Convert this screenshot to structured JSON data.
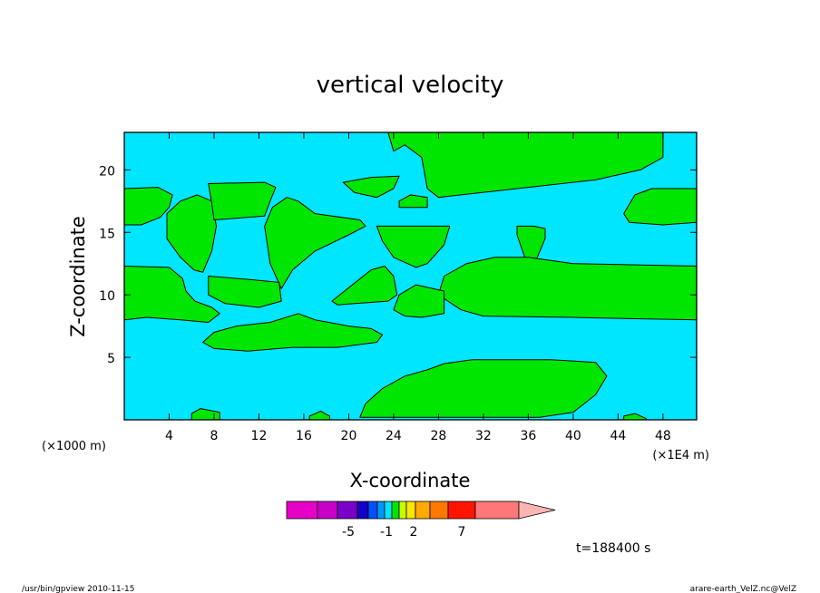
{
  "chart_data": {
    "type": "contour",
    "title": "vertical velocity",
    "xlabel": "X-coordinate",
    "ylabel": "Z-coordinate",
    "x_unit_left": "(×1000 m)",
    "x_unit_right": "(×1E4 m)",
    "xlim": [
      0,
      51
    ],
    "ylim": [
      0,
      23
    ],
    "x_ticks": [
      4,
      8,
      12,
      16,
      20,
      24,
      28,
      32,
      36,
      40,
      44,
      48
    ],
    "y_ticks": [
      5,
      10,
      15,
      20
    ],
    "background_color": "#00e6ff",
    "fill_color": "#00e600",
    "line_color": "#000000",
    "regions": [
      {
        "name": "top-center-plume",
        "points": [
          [
            23.5,
            23
          ],
          [
            48,
            23
          ],
          [
            48,
            21
          ],
          [
            46,
            20
          ],
          [
            42,
            19.2
          ],
          [
            36,
            18.6
          ],
          [
            30,
            18
          ],
          [
            28,
            17.8
          ],
          [
            27,
            18.5
          ],
          [
            26.5,
            21
          ],
          [
            25,
            22
          ],
          [
            24,
            21.5
          ]
        ]
      },
      {
        "name": "top-left-lobe",
        "points": [
          [
            0,
            18.5
          ],
          [
            3,
            18.6
          ],
          [
            4.3,
            18
          ],
          [
            4,
            17
          ],
          [
            3.2,
            16.2
          ],
          [
            1.5,
            15.6
          ],
          [
            0,
            15.6
          ]
        ]
      },
      {
        "name": "upper-left-ellipse",
        "points": [
          [
            3.8,
            16.5
          ],
          [
            5,
            17.5
          ],
          [
            6.5,
            18
          ],
          [
            7.8,
            17.5
          ],
          [
            8.2,
            15.5
          ],
          [
            7.8,
            13.5
          ],
          [
            7,
            11.8
          ],
          [
            6.2,
            12
          ],
          [
            5,
            13
          ],
          [
            3.8,
            14.5
          ]
        ]
      },
      {
        "name": "upper-left-band",
        "points": [
          [
            7.5,
            18.9
          ],
          [
            12.5,
            19
          ],
          [
            13.5,
            18.6
          ],
          [
            13,
            17.5
          ],
          [
            12.5,
            16.3
          ],
          [
            8,
            16
          ],
          [
            7.8,
            17.3
          ]
        ]
      },
      {
        "name": "center-ellipse",
        "points": [
          [
            12.5,
            15.5
          ],
          [
            13.2,
            17
          ],
          [
            14.5,
            17.8
          ],
          [
            15.5,
            17.5
          ],
          [
            17,
            16.5
          ],
          [
            21,
            16
          ],
          [
            21.5,
            15.5
          ],
          [
            20,
            14.8
          ],
          [
            17,
            13.5
          ],
          [
            15,
            12
          ],
          [
            14,
            10.5
          ],
          [
            13,
            12.5
          ]
        ]
      },
      {
        "name": "small-top-cap",
        "points": [
          [
            19.5,
            19
          ],
          [
            22,
            19.4
          ],
          [
            24.5,
            19.5
          ],
          [
            24,
            18.5
          ],
          [
            22.5,
            17.8
          ],
          [
            20.5,
            18.2
          ]
        ]
      },
      {
        "name": "small-top-bar",
        "points": [
          [
            24.5,
            17.5
          ],
          [
            25.5,
            18
          ],
          [
            27,
            17.8
          ],
          [
            27,
            17
          ],
          [
            24.5,
            17
          ]
        ]
      },
      {
        "name": "center-wedge",
        "points": [
          [
            22.5,
            15.5
          ],
          [
            25,
            15.5
          ],
          [
            29,
            15.5
          ],
          [
            28.5,
            14
          ],
          [
            27,
            12.5
          ],
          [
            26,
            12.2
          ],
          [
            24,
            13
          ],
          [
            23,
            14.3
          ]
        ]
      },
      {
        "name": "small-upper-right",
        "points": [
          [
            35,
            15.5
          ],
          [
            36.5,
            15.5
          ],
          [
            37.5,
            15.3
          ],
          [
            37.5,
            14.5
          ],
          [
            36.8,
            13
          ],
          [
            36,
            12.2
          ],
          [
            35.5,
            13.5
          ],
          [
            35,
            14.8
          ]
        ]
      },
      {
        "name": "upper-right-band",
        "points": [
          [
            44.5,
            16.5
          ],
          [
            45.5,
            18
          ],
          [
            47,
            18.5
          ],
          [
            51,
            18.5
          ],
          [
            51,
            15.8
          ],
          [
            48,
            15.6
          ],
          [
            45,
            15.8
          ]
        ]
      },
      {
        "name": "mid-left-band",
        "points": [
          [
            0,
            12.3
          ],
          [
            4,
            12.2
          ],
          [
            5.2,
            11.3
          ],
          [
            5.5,
            10.3
          ],
          [
            6.3,
            9.5
          ],
          [
            7.8,
            9
          ],
          [
            8.5,
            8.5
          ],
          [
            7.5,
            7.8
          ],
          [
            5,
            8
          ],
          [
            2,
            8.2
          ],
          [
            0,
            8
          ]
        ]
      },
      {
        "name": "mid-left-block",
        "points": [
          [
            7.5,
            11.5
          ],
          [
            11.5,
            11.2
          ],
          [
            13.8,
            11
          ],
          [
            14,
            9.5
          ],
          [
            12,
            9
          ],
          [
            9,
            9.3
          ],
          [
            7.5,
            10
          ]
        ]
      },
      {
        "name": "mid-center-block",
        "points": [
          [
            18.5,
            9.5
          ],
          [
            22,
            12
          ],
          [
            23.2,
            12.3
          ],
          [
            24,
            11.5
          ],
          [
            24.3,
            10
          ],
          [
            23.5,
            9.5
          ],
          [
            19,
            9.2
          ]
        ]
      },
      {
        "name": "right-main-band",
        "points": [
          [
            28,
            10
          ],
          [
            28.5,
            11.5
          ],
          [
            30.5,
            12.5
          ],
          [
            33,
            13
          ],
          [
            36,
            13
          ],
          [
            40,
            12.5
          ],
          [
            51,
            12.3
          ],
          [
            51,
            8
          ],
          [
            45,
            8.1
          ],
          [
            40,
            8.2
          ],
          [
            32,
            8.3
          ],
          [
            30,
            8.8
          ]
        ]
      },
      {
        "name": "mid-center-lens",
        "points": [
          [
            24,
            8.8
          ],
          [
            24.5,
            10
          ],
          [
            26,
            10.8
          ],
          [
            28.5,
            10.3
          ],
          [
            28.5,
            8.5
          ],
          [
            26.5,
            8.2
          ],
          [
            25,
            8.3
          ]
        ]
      },
      {
        "name": "lower-left-band",
        "points": [
          [
            7,
            6.2
          ],
          [
            8,
            7
          ],
          [
            10,
            7.5
          ],
          [
            13,
            7.8
          ],
          [
            15.5,
            8.5
          ],
          [
            17,
            8
          ],
          [
            20,
            7.5
          ],
          [
            22,
            7.3
          ],
          [
            23,
            6.8
          ],
          [
            22.5,
            6.2
          ],
          [
            19,
            5.8
          ],
          [
            15,
            5.8
          ],
          [
            11,
            5.5
          ],
          [
            8,
            5.7
          ]
        ]
      },
      {
        "name": "bottom-right-mound",
        "points": [
          [
            21.5,
            1.3
          ],
          [
            23,
            2.5
          ],
          [
            25,
            3.5
          ],
          [
            27,
            4
          ],
          [
            28.5,
            4.5
          ],
          [
            31,
            4.8
          ],
          [
            38,
            4.8
          ],
          [
            42,
            4.6
          ],
          [
            43,
            3.5
          ],
          [
            42,
            2
          ],
          [
            40,
            0.6
          ],
          [
            37,
            0.2
          ],
          [
            30,
            0.2
          ],
          [
            21,
            0.2
          ]
        ]
      },
      {
        "name": "bottom-left-bump",
        "points": [
          [
            6,
            0.5
          ],
          [
            6.8,
            0.9
          ],
          [
            8.5,
            0.6
          ],
          [
            8.5,
            0
          ],
          [
            6,
            0
          ]
        ]
      },
      {
        "name": "bottom-mid-bump",
        "points": [
          [
            16.5,
            0.3
          ],
          [
            17.5,
            0.7
          ],
          [
            18.3,
            0.3
          ],
          [
            18.3,
            0
          ],
          [
            16.5,
            0
          ]
        ]
      },
      {
        "name": "bottom-right-bump",
        "points": [
          [
            44.5,
            0.3
          ],
          [
            45.5,
            0.5
          ],
          [
            46.5,
            0.1
          ],
          [
            46.5,
            0
          ],
          [
            44.5,
            0
          ]
        ]
      }
    ]
  },
  "colorbar": {
    "colors": [
      "#e600c8",
      "#c800c8",
      "#7800c8",
      "#1400c8",
      "#0050ff",
      "#0096ff",
      "#00e6ff",
      "#00e600",
      "#c8ff00",
      "#ffe600",
      "#ffaa00",
      "#ff7800",
      "#ff1400",
      "#ff7878",
      "#ffb4b4"
    ],
    "tick_labels": [
      "-5",
      "-1",
      "2",
      "7"
    ]
  },
  "time_label": "t=188400 s",
  "footer": {
    "left": "/usr/bin/gpview   2010-11-15",
    "right": "arare-earth_VelZ.nc@VelZ"
  }
}
